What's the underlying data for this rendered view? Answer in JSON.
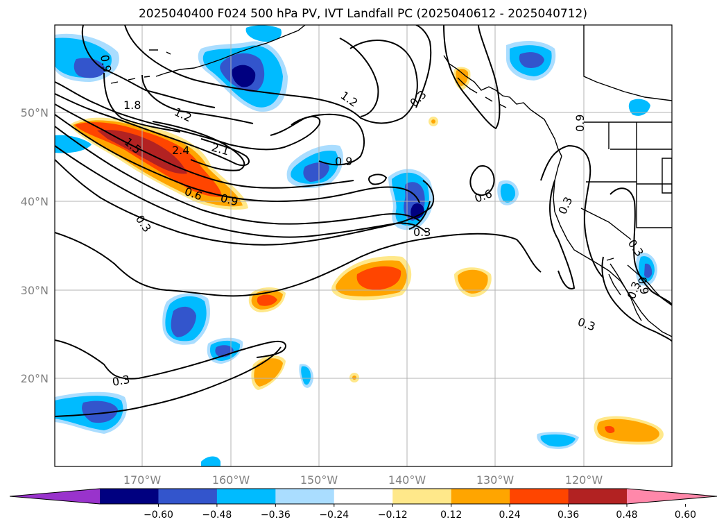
{
  "title": "2025040400 F024 500 hPa PV, IVT Landfall PC (2025040612 - 2025040712)",
  "lat_labels": [
    "50°N",
    "40°N",
    "30°N",
    "20°N"
  ],
  "lon_labels": [
    "170°W",
    "160°W",
    "150°W",
    "140°W",
    "130°W",
    "120°W"
  ],
  "contour_labels": [
    "0.9",
    "1.8",
    "1.2",
    "1.5",
    "2.4",
    "2.1",
    "0.6",
    "0.9",
    "0.3",
    "1.2",
    "0.3",
    "0.9",
    "0.3",
    "0.6",
    "0.3",
    "0.9",
    "0.3",
    "0.3",
    "0.9",
    "0.3",
    "0.3"
  ],
  "colorbar": {
    "ticks": [
      "−0.60",
      "−0.48",
      "−0.36",
      "−0.24",
      "−0.12",
      "0.12",
      "0.24",
      "0.36",
      "0.48",
      "0.60"
    ],
    "colors": [
      "#9933cc",
      "#000080",
      "#3355cc",
      "#00bbff",
      "#aaddff",
      "#ffffff",
      "#ffe88a",
      "#ffa500",
      "#ff4500",
      "#b22222",
      "#ff88aa"
    ]
  },
  "chart_data": {
    "type": "map",
    "lon_range": [
      -180,
      -110
    ],
    "lat_range": [
      10,
      60
    ],
    "grid": true,
    "field_shaded": "IVT landfall PC",
    "field_contoured": "500 hPa PV"
  }
}
